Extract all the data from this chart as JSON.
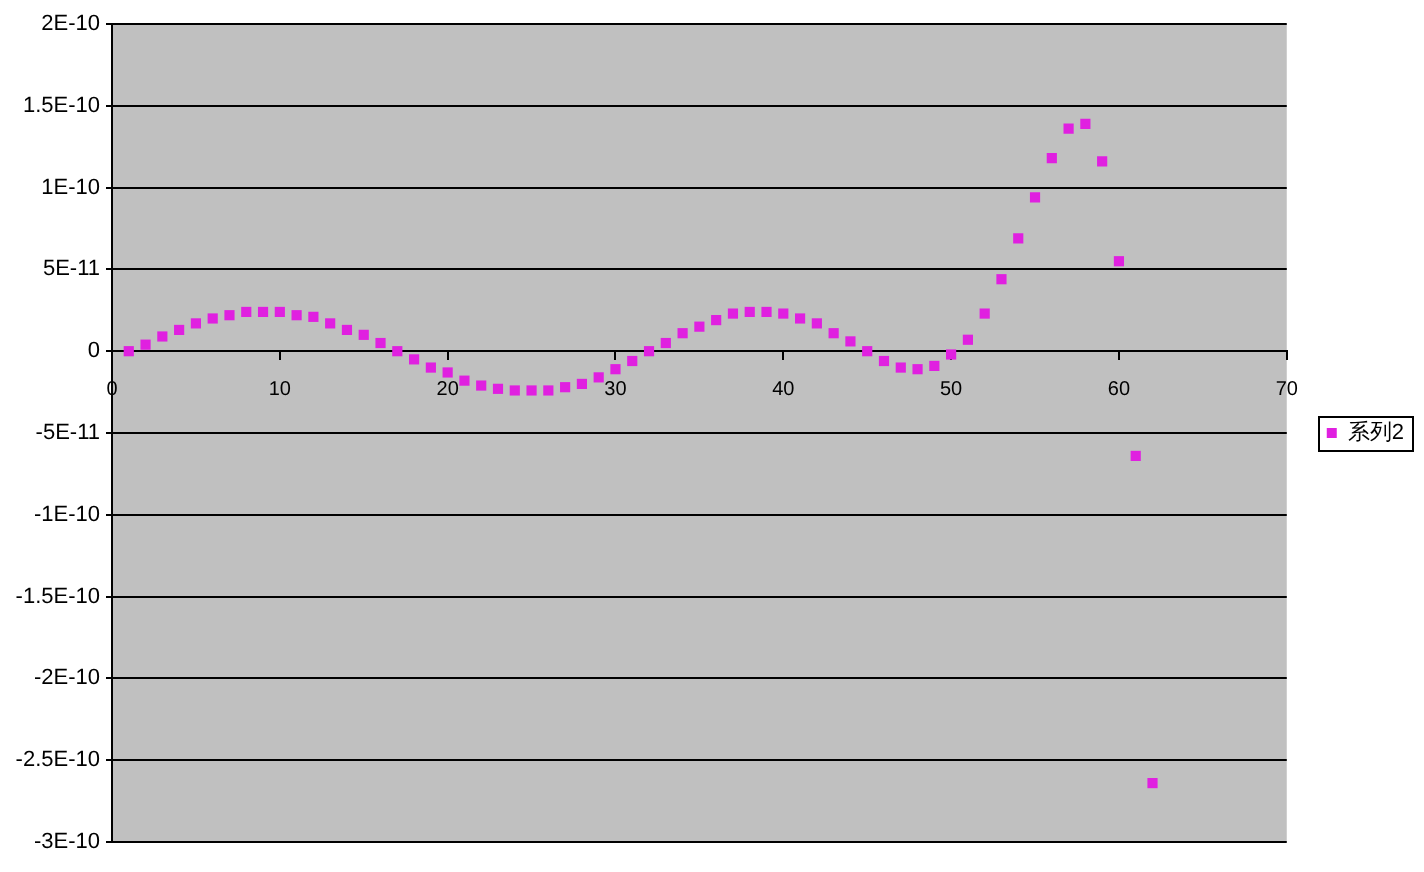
{
  "chart_data": {
    "type": "scatter",
    "x": [
      1,
      2,
      3,
      4,
      5,
      6,
      7,
      8,
      9,
      10,
      11,
      12,
      13,
      14,
      15,
      16,
      17,
      18,
      19,
      20,
      21,
      22,
      23,
      24,
      25,
      26,
      27,
      28,
      29,
      30,
      31,
      32,
      33,
      34,
      35,
      36,
      37,
      38,
      39,
      40,
      41,
      42,
      43,
      44,
      45,
      46,
      47,
      48,
      49,
      50,
      51,
      52,
      53,
      54,
      55,
      56,
      57,
      58,
      59,
      60,
      61,
      62
    ],
    "series": [
      {
        "name": "系列2",
        "color": "#e020e0",
        "values": [
          0,
          4e-12,
          9e-12,
          1.3e-11,
          1.7e-11,
          2e-11,
          2.2e-11,
          2.4e-11,
          2.4e-11,
          2.4e-11,
          2.2e-11,
          2.1e-11,
          1.7e-11,
          1.3e-11,
          1e-11,
          5e-12,
          0,
          -5e-12,
          -1e-11,
          -1.3e-11,
          -1.8e-11,
          -2.1e-11,
          -2.3e-11,
          -2.4e-11,
          -2.4e-11,
          -2.4e-11,
          -2.2e-11,
          -2e-11,
          -1.6e-11,
          -1.1e-11,
          -6e-12,
          0,
          5e-12,
          1.1e-11,
          1.5e-11,
          1.9e-11,
          2.3e-11,
          2.4e-11,
          2.4e-11,
          2.3e-11,
          2e-11,
          1.7e-11,
          1.1e-11,
          6e-12,
          0,
          -6e-12,
          -1e-11,
          -1.1e-11,
          -9e-12,
          -2e-12,
          7e-12,
          2.3e-11,
          4.4e-11,
          6.9e-11,
          9.4e-11,
          1.18e-10,
          1.36e-10,
          1.39e-10,
          1.16e-10,
          5.5e-11,
          -6.4e-11,
          -2.64e-10
        ]
      }
    ],
    "xlim": [
      0,
      70
    ],
    "xticks": [
      0,
      10,
      20,
      30,
      40,
      50,
      60,
      70
    ],
    "ylim": [
      -3e-10,
      2e-10
    ],
    "yticks": [
      {
        "value": -3e-10,
        "label": "-3E-10"
      },
      {
        "value": -2.5e-10,
        "label": "-2.5E-10"
      },
      {
        "value": -2e-10,
        "label": "-2E-10"
      },
      {
        "value": -1.5e-10,
        "label": "-1.5E-10"
      },
      {
        "value": -1e-10,
        "label": "-1E-10"
      },
      {
        "value": -5e-11,
        "label": "-5E-11"
      },
      0,
      {
        "value": 5e-11,
        "label": "5E-11"
      },
      {
        "value": 1e-10,
        "label": "1E-10"
      },
      {
        "value": 1.5e-10,
        "label": "1.5E-10"
      },
      {
        "value": 2e-10,
        "label": "2E-10"
      }
    ],
    "grid": "y",
    "legend": "right",
    "marker": "square"
  }
}
